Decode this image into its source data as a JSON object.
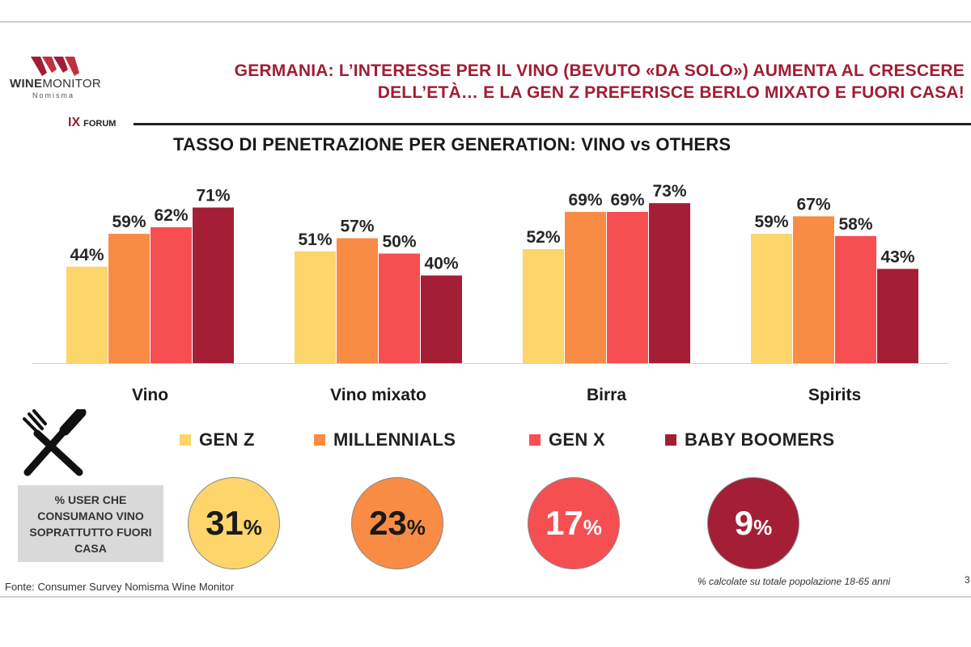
{
  "header": {
    "title_line1": "GERMANIA: L’INTERESSE PER IL VINO (BEVUTO «DA SOLO») AUMENTA AL CRESCERE",
    "title_line2": "DELL’ETÀ… E LA GEN Z PREFERISCE BERLO MIXATO E FUORI CASA!",
    "logo_word1": "WINE",
    "logo_word2": "MONITOR",
    "logo_sub": "Nomisma",
    "forum_numeral": "IX",
    "forum_word": "FORUM"
  },
  "colors": {
    "gen_z": "#fdd56b",
    "millennials": "#f98c45",
    "gen_x": "#f64f52",
    "baby_boomers": "#a41f35",
    "brand": "#a11d33"
  },
  "chart_data": {
    "type": "bar",
    "title": "TASSO DI PENETRAZIONE PER GENERATION: VINO vs OTHERS",
    "categories": [
      "Vino",
      "Vino mixato",
      "Birra",
      "Spirits"
    ],
    "series": [
      {
        "name": "GEN Z",
        "values": [
          44,
          51,
          52,
          59
        ]
      },
      {
        "name": "MILLENNIALS",
        "values": [
          59,
          57,
          69,
          67
        ]
      },
      {
        "name": "GEN X",
        "values": [
          62,
          50,
          69,
          58
        ]
      },
      {
        "name": "BABY BOOMERS",
        "values": [
          71,
          40,
          73,
          43
        ]
      }
    ],
    "value_suffix": "%",
    "ylim": [
      0,
      85
    ],
    "grid": false,
    "legend_position": "bottom"
  },
  "away_from_home": {
    "label": "% USER CHE CONSUMANO VINO SOPRATTUTTO FUORI CASA",
    "values": [
      {
        "generation": "GEN Z",
        "value": "31",
        "suffix": "%"
      },
      {
        "generation": "MILLENNIALS",
        "value": "23",
        "suffix": "%"
      },
      {
        "generation": "GEN X",
        "value": "17",
        "suffix": "%"
      },
      {
        "generation": "BABY BOOMERS",
        "value": "9",
        "suffix": "%"
      }
    ]
  },
  "footer": {
    "source": "Fonte: Consumer Survey Nomisma Wine Monitor",
    "note": "% calcolate su totale popolazione 18-65 anni",
    "page_number": "3"
  }
}
